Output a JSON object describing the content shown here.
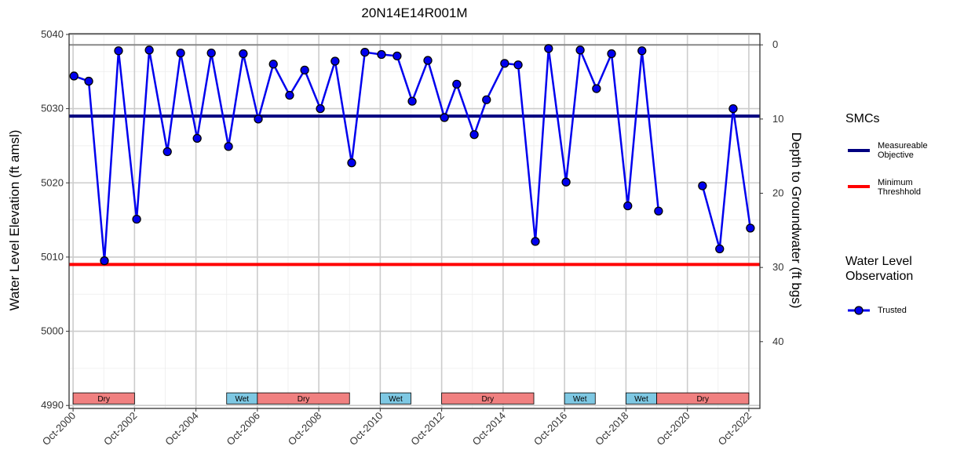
{
  "chart_data": {
    "type": "line",
    "title": "20N14E14R001M",
    "ylabel": "Water Level Elevation (ft amsl)",
    "y2label": "Depth to Groundwater (ft bgs)",
    "xlim": [
      2000.62,
      2023.11
    ],
    "xticks": [
      {
        "value": 2000.75,
        "label": "Oct-2000"
      },
      {
        "value": 2002.75,
        "label": "Oct-2002"
      },
      {
        "value": 2004.75,
        "label": "Oct-2004"
      },
      {
        "value": 2006.75,
        "label": "Oct-2006"
      },
      {
        "value": 2008.75,
        "label": "Oct-2008"
      },
      {
        "value": 2010.75,
        "label": "Oct-2010"
      },
      {
        "value": 2012.75,
        "label": "Oct-2012"
      },
      {
        "value": 2014.75,
        "label": "Oct-2014"
      },
      {
        "value": 2016.75,
        "label": "Oct-2016"
      },
      {
        "value": 2018.75,
        "label": "Oct-2018"
      },
      {
        "value": 2020.75,
        "label": "Oct-2020"
      },
      {
        "value": 2022.75,
        "label": "Oct-2022"
      }
    ],
    "ylim": [
      4989.6,
      5040.1
    ],
    "yticks": [
      4990,
      5000,
      5010,
      5020,
      5030,
      5040
    ],
    "y2lim": [
      49,
      -1.5
    ],
    "y2ticks": [
      0,
      10,
      20,
      30,
      40
    ],
    "y2_zero_line": true,
    "grid": true,
    "x": [
      2000.78,
      2001.26,
      2001.77,
      2002.23,
      2002.82,
      2003.23,
      2003.82,
      2004.25,
      2004.79,
      2005.25,
      2005.81,
      2006.29,
      2006.78,
      2007.27,
      2007.8,
      2008.29,
      2008.8,
      2009.28,
      2009.82,
      2010.25,
      2010.79,
      2011.3,
      2011.79,
      2012.3,
      2012.84,
      2013.24,
      2013.81,
      2014.21,
      2014.8,
      2015.24,
      2015.8,
      2016.23,
      2016.8,
      2017.26,
      2017.79,
      2018.28,
      2018.81,
      2019.27,
      2019.81,
      2020.5,
      2021.24,
      2021.8,
      2022.24,
      2022.8
    ],
    "series": [
      {
        "name": "Trusted",
        "color": "#0000ee",
        "values": [
          5034.4,
          5033.7,
          5009.5,
          5037.8,
          5015.1,
          5037.9,
          5024.2,
          5037.5,
          5026.0,
          5037.5,
          5024.9,
          5037.4,
          5028.6,
          5036.0,
          5031.8,
          5035.2,
          5030.0,
          5036.4,
          5022.7,
          5037.6,
          5037.3,
          5037.1,
          5031.0,
          5036.5,
          5028.8,
          5033.3,
          5026.5,
          5031.2,
          5036.1,
          5035.9,
          5012.1,
          5038.1,
          5020.1,
          5037.9,
          5032.7,
          5037.4,
          5016.9,
          5037.8,
          5016.2,
          null,
          5019.6,
          5011.1,
          5030.0,
          5013.9
        ]
      }
    ],
    "hlines": [
      {
        "name": "Measureable Objective",
        "value": 5029,
        "color": "#000080"
      },
      {
        "name": "Minimum Threshhold",
        "value": 5009,
        "color": "#ff0000"
      }
    ],
    "legend_titles": [
      "SMCs",
      "Water Level Observation"
    ],
    "periods": [
      {
        "label": "Dry",
        "start": 2000.75,
        "end": 2002.75,
        "color": "#f08080"
      },
      {
        "label": "Wet",
        "start": 2005.75,
        "end": 2006.75,
        "color": "#7ec8e3"
      },
      {
        "label": "Dry",
        "start": 2006.75,
        "end": 2009.75,
        "color": "#f08080"
      },
      {
        "label": "Wet",
        "start": 2010.75,
        "end": 2011.75,
        "color": "#7ec8e3"
      },
      {
        "label": "Dry",
        "start": 2012.75,
        "end": 2015.75,
        "color": "#f08080"
      },
      {
        "label": "Wet",
        "start": 2016.75,
        "end": 2017.75,
        "color": "#7ec8e3"
      },
      {
        "label": "Wet",
        "start": 2018.75,
        "end": 2019.75,
        "color": "#7ec8e3"
      },
      {
        "label": "Dry",
        "start": 2019.75,
        "end": 2022.75,
        "color": "#f08080"
      }
    ],
    "period_band": [
      4990.2,
      4991.7
    ]
  }
}
